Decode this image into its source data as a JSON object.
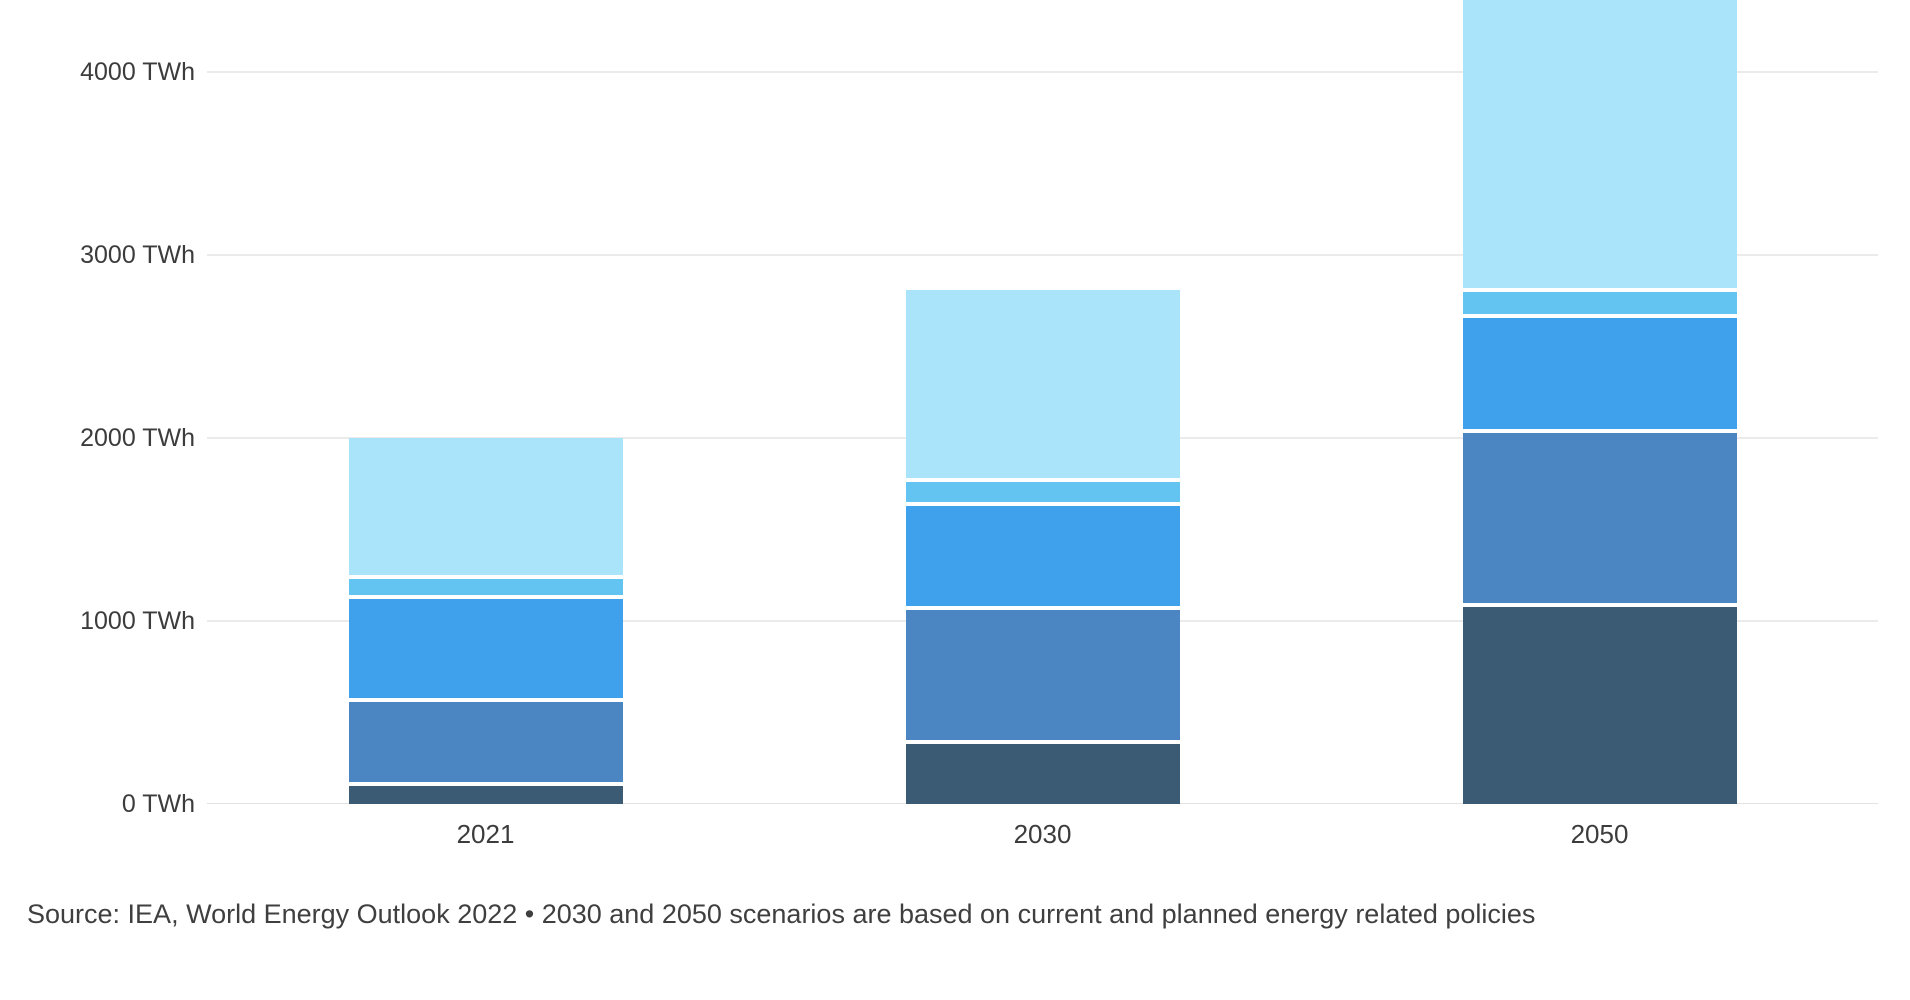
{
  "chart_data": {
    "type": "bar",
    "stacked": true,
    "title": "",
    "xlabel": "",
    "ylabel": "TWh",
    "categories": [
      "2021",
      "2030",
      "2050"
    ],
    "series": [
      {
        "name": "segment-darkest-blue",
        "color": "#3b5a74",
        "values": [
          120,
          350,
          1100
        ]
      },
      {
        "name": "segment-steel-blue",
        "color": "#4c86c2",
        "values": [
          460,
          730,
          950
        ]
      },
      {
        "name": "segment-bright-blue",
        "color": "#3fa1ec",
        "values": [
          560,
          570,
          630
        ]
      },
      {
        "name": "segment-light-blue",
        "color": "#63c4f1",
        "values": [
          110,
          130,
          140
        ]
      },
      {
        "name": "segment-pale-blue",
        "color": "#aae4fa",
        "values": [
          750,
          1030,
          1620
        ]
      }
    ],
    "y_ticks": [
      {
        "value": 0,
        "label": "0 TWh"
      },
      {
        "value": 1000,
        "label": "1000 TWh"
      },
      {
        "value": 2000,
        "label": "2000 TWh"
      },
      {
        "value": 3000,
        "label": "3000 TWh"
      },
      {
        "value": 4000,
        "label": "4000 TWh"
      }
    ],
    "ylim": [
      0,
      4400
    ],
    "grid": true,
    "legend_position": "none",
    "segment_gap_color": "#ffffff",
    "source": "Source: IEA, World Energy Outlook 2022 • 2030 and 2050 scenarios are based on current and planned energy related policies"
  }
}
